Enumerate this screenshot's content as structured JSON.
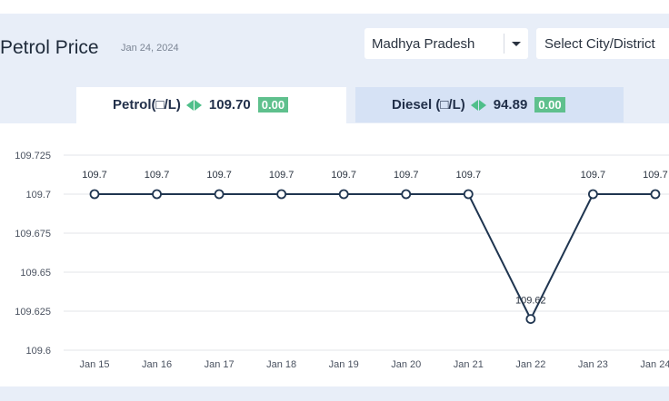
{
  "header": {
    "title": "Petrol Price",
    "date": "Jan 24, 2024",
    "state_select": {
      "value": "Madhya Pradesh"
    },
    "city_select": {
      "placeholder": "Select City/District"
    }
  },
  "tabs": [
    {
      "label": "Petrol(□/L)",
      "price": "109.70",
      "change": "0.00",
      "active": true
    },
    {
      "label": "Diesel (□/L)",
      "price": "94.89",
      "change": "0.00",
      "active": false
    }
  ],
  "colors": {
    "line": "#1f3550",
    "accent_green": "#5fc08d",
    "active_tab": "#ffffff",
    "inactive_tab": "#d6e2f5"
  },
  "icons": {
    "change_indicator": "left-right-arrows-icon",
    "dropdown": "caret-down-icon"
  },
  "chart_data": {
    "type": "line",
    "categories": [
      "Jan 15",
      "Jan 16",
      "Jan 17",
      "Jan 18",
      "Jan 19",
      "Jan 20",
      "Jan 21",
      "Jan 22",
      "Jan 23",
      "Jan 24"
    ],
    "values": [
      109.7,
      109.7,
      109.7,
      109.7,
      109.7,
      109.7,
      109.7,
      109.62,
      109.7,
      109.7
    ],
    "data_labels": [
      "109.7",
      "109.7",
      "109.7",
      "109.7",
      "109.7",
      "109.7",
      "109.7",
      "109.62",
      "109.7",
      "109.7"
    ],
    "y_ticks": [
      109.6,
      109.625,
      109.65,
      109.675,
      109.7,
      109.725
    ],
    "y_tick_labels": [
      "109.6",
      "109.625",
      "109.65",
      "109.675",
      "109.7",
      "109.725"
    ],
    "ylim": [
      109.6,
      109.725
    ],
    "grid": true,
    "title": "",
    "xlabel": "",
    "ylabel": ""
  }
}
